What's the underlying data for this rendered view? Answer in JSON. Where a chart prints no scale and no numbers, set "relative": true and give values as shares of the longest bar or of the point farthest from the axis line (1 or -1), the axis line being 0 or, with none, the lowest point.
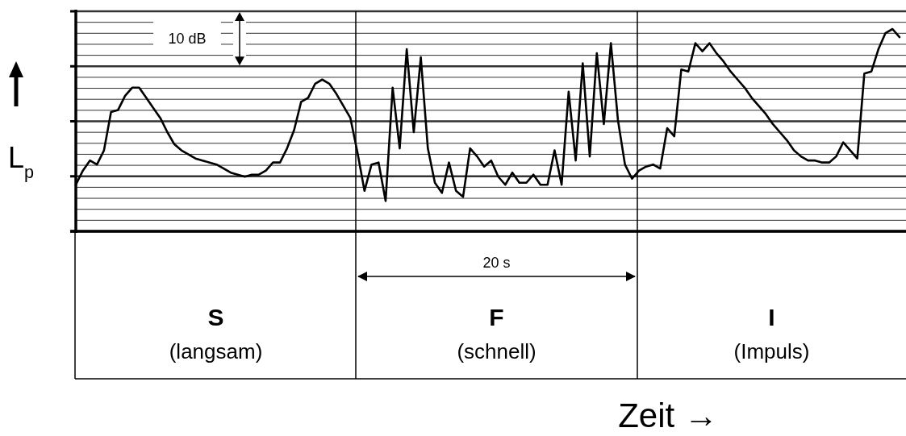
{
  "chart_data": {
    "type": "line",
    "relative": true,
    "xlabel": "Zeit →",
    "ylabel": "L$_{p}$",
    "categories": [
      null,
      null,
      null,
      null,
      null,
      null,
      null,
      null,
      null,
      null,
      null,
      null,
      null,
      null,
      null,
      null,
      null,
      null,
      null,
      null,
      null,
      null,
      null,
      null,
      null,
      null,
      null,
      null,
      null,
      null,
      null,
      null,
      null,
      null,
      null,
      null,
      null,
      null,
      null,
      null,
      null,
      null,
      null,
      null,
      null,
      null,
      null,
      null,
      null,
      null,
      null,
      null,
      null,
      null,
      null,
      null,
      null,
      null,
      null,
      null,
      null,
      null,
      null,
      null,
      null,
      null,
      null,
      null,
      null,
      null,
      null,
      null,
      null,
      null,
      null,
      null,
      null,
      null,
      null,
      null,
      null,
      null,
      null,
      null,
      null,
      null,
      null,
      null,
      null,
      null,
      null,
      null,
      null,
      null,
      null,
      null,
      null,
      null,
      null,
      null,
      null,
      null,
      null,
      null,
      null,
      null,
      null,
      null,
      null,
      null,
      null,
      null,
      null,
      null,
      null,
      null,
      null,
      null
    ],
    "grid": "y",
    "marker": "none",
    "line_style": "solid",
    "annotations": [
      "10 dB",
      "20 s",
      "S",
      "(langsam)",
      "F",
      "(schnell)",
      "I",
      "(Impuls)"
    ],
    "series": [
      {
        "color": "#000000",
        "values": [
          0.23,
          0.3,
          0.35,
          0.33,
          0.4,
          0.59,
          0.6,
          0.67,
          0.71,
          0.71,
          0.66,
          0.61,
          0.56,
          0.49,
          0.43,
          0.4,
          0.38,
          0.36,
          0.35,
          0.34,
          0.33,
          0.31,
          0.29,
          0.28,
          0.27,
          0.28,
          0.28,
          0.3,
          0.34,
          0.34,
          0.41,
          0.5,
          0.64,
          0.66,
          0.73,
          0.75,
          0.73,
          0.68,
          0.62,
          0.56,
          0.39,
          0.2,
          0.33,
          0.34,
          0.15,
          0.71,
          0.41,
          0.9,
          0.49,
          0.86,
          0.41,
          0.24,
          0.19,
          0.34,
          0.2,
          0.17,
          0.41,
          0.37,
          0.32,
          0.35,
          0.27,
          0.23,
          0.29,
          0.24,
          0.24,
          0.28,
          0.23,
          0.23,
          0.4,
          0.23,
          0.69,
          0.35,
          0.83,
          0.37,
          0.88,
          0.53,
          0.93,
          0.55,
          0.33,
          0.26,
          0.3,
          0.32,
          0.33,
          0.31,
          0.51,
          0.47,
          0.8,
          0.79,
          0.93,
          0.89,
          0.93,
          0.88,
          0.84,
          0.79,
          0.75,
          0.71,
          0.66,
          0.62,
          0.58,
          0.53,
          0.49,
          0.45,
          0.4,
          0.37,
          0.35,
          0.35,
          0.34,
          0.34,
          0.37,
          0.44,
          0.4,
          0.36,
          0.78,
          0.79,
          0.9,
          0.98,
          1,
          0.96
        ]
      }
    ]
  }
}
